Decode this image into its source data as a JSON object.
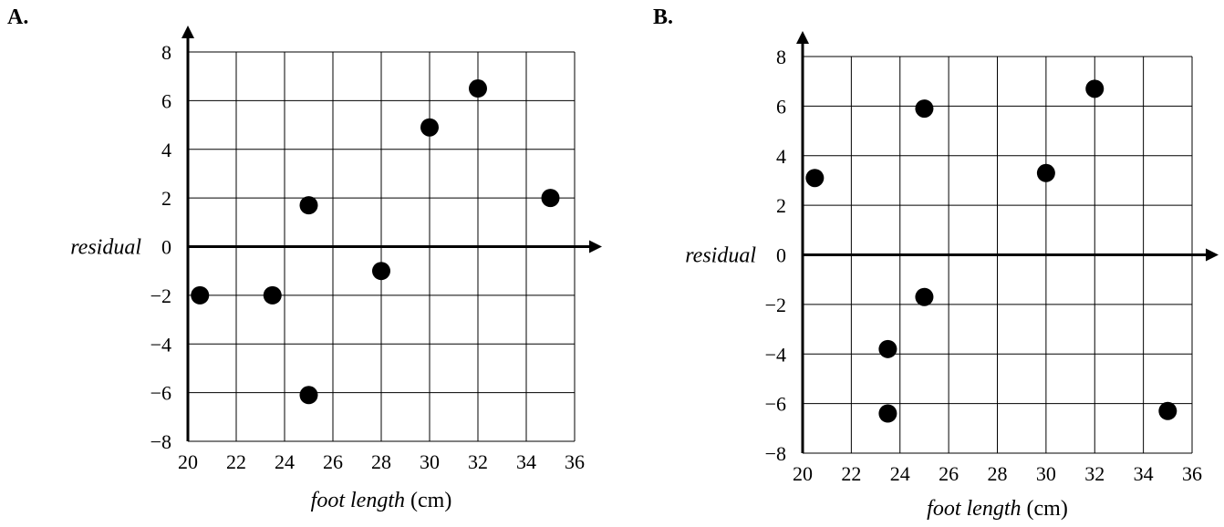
{
  "chart_data": [
    {
      "type": "scatter",
      "panel_label": "A.",
      "xlabel_italic": "foot length",
      "xlabel_unit": " (cm)",
      "ylabel": "residual",
      "xlim": [
        20,
        36
      ],
      "ylim": [
        -8,
        8
      ],
      "x_ticks": [
        20,
        22,
        24,
        26,
        28,
        30,
        32,
        34,
        36
      ],
      "y_ticks": [
        8,
        6,
        4,
        2,
        0,
        -2,
        -4,
        -6,
        -8
      ],
      "y_tick_labels": [
        "8",
        "6",
        "4",
        "2",
        "0",
        "−2",
        "−4",
        "−6",
        "−8"
      ],
      "grid": true,
      "points": [
        {
          "x": 20.5,
          "y": -2
        },
        {
          "x": 23.5,
          "y": -2
        },
        {
          "x": 25,
          "y": 1.7
        },
        {
          "x": 25,
          "y": -6.1
        },
        {
          "x": 28,
          "y": -1
        },
        {
          "x": 30,
          "y": 4.9
        },
        {
          "x": 32,
          "y": 6.5
        },
        {
          "x": 35,
          "y": 2
        }
      ]
    },
    {
      "type": "scatter",
      "panel_label": "B.",
      "xlabel_italic": "foot length",
      "xlabel_unit": " (cm)",
      "ylabel": "residual",
      "xlim": [
        20,
        36
      ],
      "ylim": [
        -8,
        8
      ],
      "x_ticks": [
        20,
        22,
        24,
        26,
        28,
        30,
        32,
        34,
        36
      ],
      "y_ticks": [
        8,
        6,
        4,
        2,
        0,
        -2,
        -4,
        -6,
        -8
      ],
      "y_tick_labels": [
        "8",
        "6",
        "4",
        "2",
        "0",
        "−2",
        "−4",
        "−6",
        "−8"
      ],
      "grid": true,
      "points": [
        {
          "x": 20.5,
          "y": 3.1
        },
        {
          "x": 23.5,
          "y": -3.8
        },
        {
          "x": 23.5,
          "y": -6.4
        },
        {
          "x": 25,
          "y": 5.9
        },
        {
          "x": 25,
          "y": -1.7
        },
        {
          "x": 30,
          "y": 3.3
        },
        {
          "x": 32,
          "y": 6.7
        },
        {
          "x": 35,
          "y": -6.3
        }
      ]
    }
  ]
}
